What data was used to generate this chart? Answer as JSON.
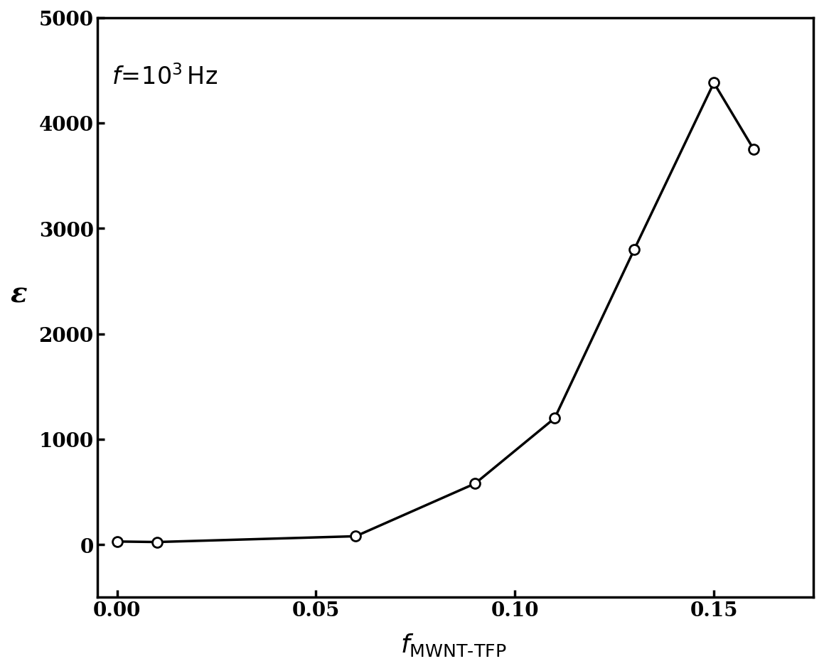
{
  "x": [
    0.0,
    0.01,
    0.06,
    0.09,
    0.11,
    0.13,
    0.15,
    0.16
  ],
  "y": [
    30,
    25,
    80,
    580,
    1200,
    2800,
    4380,
    3750
  ],
  "xlim": [
    -0.005,
    0.175
  ],
  "ylim": [
    -500,
    5000
  ],
  "yticks": [
    0,
    1000,
    2000,
    3000,
    4000,
    5000
  ],
  "xticks": [
    0.0,
    0.05,
    0.1,
    0.15
  ],
  "xlabel_main": "f",
  "xlabel_sub": "MWNT-TFP",
  "ylabel": "ε",
  "annotation": "f = 10³ Hz",
  "line_color": "#000000",
  "marker": "o",
  "marker_facecolor": "#ffffff",
  "marker_edgecolor": "#000000",
  "marker_size": 10,
  "linewidth": 2.5,
  "background_color": "#ffffff",
  "title_fontsize": 22,
  "axis_fontsize": 22,
  "tick_fontsize": 20
}
